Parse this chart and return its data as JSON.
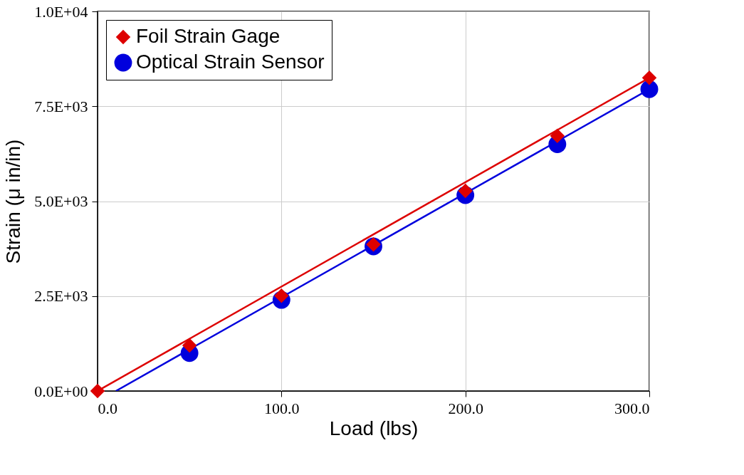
{
  "chart_data": {
    "type": "scatter",
    "xlabel": "Load (lbs)",
    "ylabel": "Strain (μ in/in)",
    "x": [
      0,
      50,
      100,
      150,
      200,
      250,
      300
    ],
    "series": [
      {
        "name": "Foil Strain Gage",
        "color": "#dd0000",
        "marker": "diamond",
        "values": [
          0,
          1200,
          2510,
          3860,
          5270,
          6720,
          8250
        ]
      },
      {
        "name": "Optical Strain Sensor",
        "color": "#0000dd",
        "marker": "circle",
        "values": [
          null,
          1000,
          2400,
          3810,
          5160,
          6500,
          7950
        ]
      },
      {
        "type": "line",
        "color": "#dd0000",
        "x": [
          0,
          300
        ],
        "values": [
          0,
          8250
        ]
      },
      {
        "type": "line",
        "color": "#0000dd",
        "x": [
          10,
          300
        ],
        "values": [
          0,
          7950
        ]
      }
    ],
    "xlim": [
      0,
      300
    ],
    "ylim": [
      0,
      10000
    ],
    "xticks": [
      {
        "value": 0,
        "label": "0.0"
      },
      {
        "value": 100,
        "label": "100.0"
      },
      {
        "value": 200,
        "label": "200.0"
      },
      {
        "value": 300,
        "label": "300.0"
      }
    ],
    "yticks": [
      {
        "value": 0,
        "label": "0.0E+00"
      },
      {
        "value": 2500,
        "label": "2.5E+03"
      },
      {
        "value": 5000,
        "label": "5.0E+03"
      },
      {
        "value": 7500,
        "label": "7.5E+03"
      },
      {
        "value": 10000,
        "label": "1.0E+04"
      }
    ],
    "grid": true,
    "legend": "top left",
    "line_style": "solid"
  }
}
